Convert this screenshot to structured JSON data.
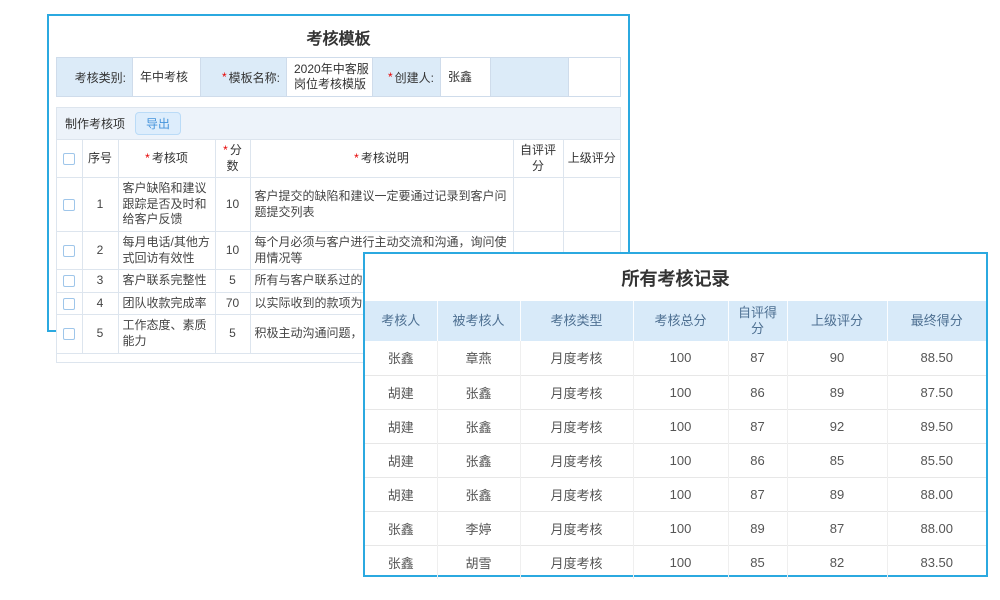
{
  "misc": {
    "required_marker": "*"
  },
  "colors": {
    "panel_border": "#2BA9E0",
    "form_label_bg": "#DCEBF8",
    "toolbar_bg": "#EDF3FA",
    "export_button_text": "#4694DB",
    "records_header_bg": "#D8EAF9",
    "required_star": "#e60000"
  },
  "template_panel": {
    "title": "考核模板",
    "form": {
      "fields": [
        {
          "label": "考核类别:",
          "required": false,
          "value": "年中考核"
        },
        {
          "label": "模板名称:",
          "required": true,
          "value": "2020年中客服岗位考核模版"
        },
        {
          "label": "创建人:",
          "required": true,
          "value": "张鑫"
        },
        {
          "label": "",
          "required": false,
          "value": ""
        }
      ]
    },
    "toolbar": {
      "tab_label": "制作考核项",
      "export_label": "导出"
    },
    "table": {
      "headers": {
        "no": "序号",
        "item": "考核项",
        "score": "分数",
        "desc": "考核说明",
        "self": "自评评分",
        "supervisor": "上级评分"
      },
      "required_columns": [
        "item",
        "score",
        "desc"
      ],
      "rows": [
        {
          "no": "1",
          "item": "客户缺陷和建议跟踪是否及时和给客户反馈",
          "score": "10",
          "desc": "客户提交的缺陷和建议一定要通过记录到客户问题提交列表",
          "self": "",
          "supervisor": ""
        },
        {
          "no": "2",
          "item": "每月电话/其他方式回访有效性",
          "score": "10",
          "desc": "每个月必须与客户进行主动交流和沟通，询问使用情况等",
          "self": "",
          "supervisor": ""
        },
        {
          "no": "3",
          "item": "客户联系完整性",
          "score": "5",
          "desc": "所有与客户联系过的情况都需要记录到客户卡片",
          "self": "",
          "supervisor": ""
        },
        {
          "no": "4",
          "item": "团队收款完成率",
          "score": "70",
          "desc": "以实际收到的款项为基，并不以有效回款为准",
          "self": "",
          "supervisor": ""
        },
        {
          "no": "5",
          "item": "工作态度、素质能力",
          "score": "5",
          "desc": "积极主动沟通问题，对客户热情真诚",
          "self": "",
          "supervisor": ""
        }
      ]
    }
  },
  "records_panel": {
    "title": "所有考核记录",
    "table": {
      "headers": [
        "考核人",
        "被考核人",
        "考核类型",
        "考核总分",
        "自评得分",
        "上级评分",
        "最终得分"
      ],
      "rows": [
        [
          "张鑫",
          "章燕",
          "月度考核",
          "100",
          "87",
          "90",
          "88.50"
        ],
        [
          "胡建",
          "张鑫",
          "月度考核",
          "100",
          "86",
          "89",
          "87.50"
        ],
        [
          "胡建",
          "张鑫",
          "月度考核",
          "100",
          "87",
          "92",
          "89.50"
        ],
        [
          "胡建",
          "张鑫",
          "月度考核",
          "100",
          "86",
          "85",
          "85.50"
        ],
        [
          "胡建",
          "张鑫",
          "月度考核",
          "100",
          "87",
          "89",
          "88.00"
        ],
        [
          "张鑫",
          "李婷",
          "月度考核",
          "100",
          "89",
          "87",
          "88.00"
        ],
        [
          "张鑫",
          "胡雪",
          "月度考核",
          "100",
          "85",
          "82",
          "83.50"
        ]
      ]
    }
  }
}
